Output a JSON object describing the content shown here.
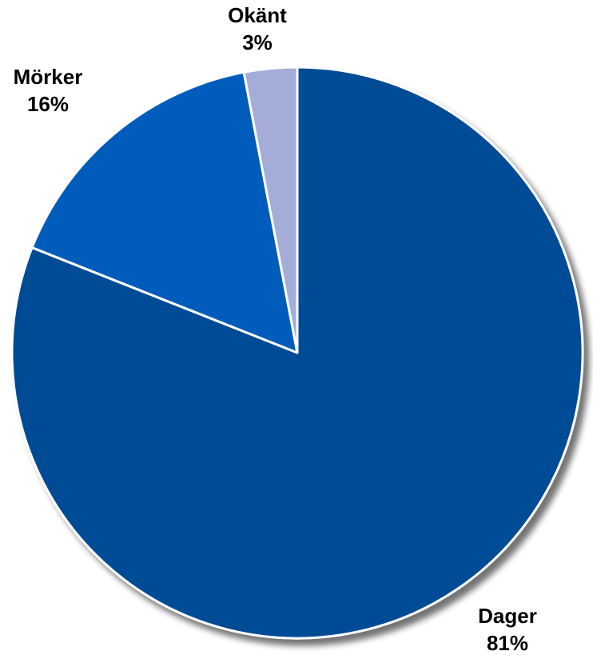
{
  "chart_data": {
    "type": "pie",
    "title": "",
    "start_angle_deg": 0,
    "direction": "clockwise",
    "slices": [
      {
        "category": "Dager",
        "value": 81,
        "label": "81%",
        "color": "#004B96"
      },
      {
        "category": "Mörker",
        "value": 16,
        "label": "16%",
        "color": "#005BBB"
      },
      {
        "category": "Okänt",
        "value": 3,
        "label": "3%",
        "color": "#A3ADD8"
      }
    ],
    "border_color": "#FFFFFF",
    "shadow": true
  }
}
